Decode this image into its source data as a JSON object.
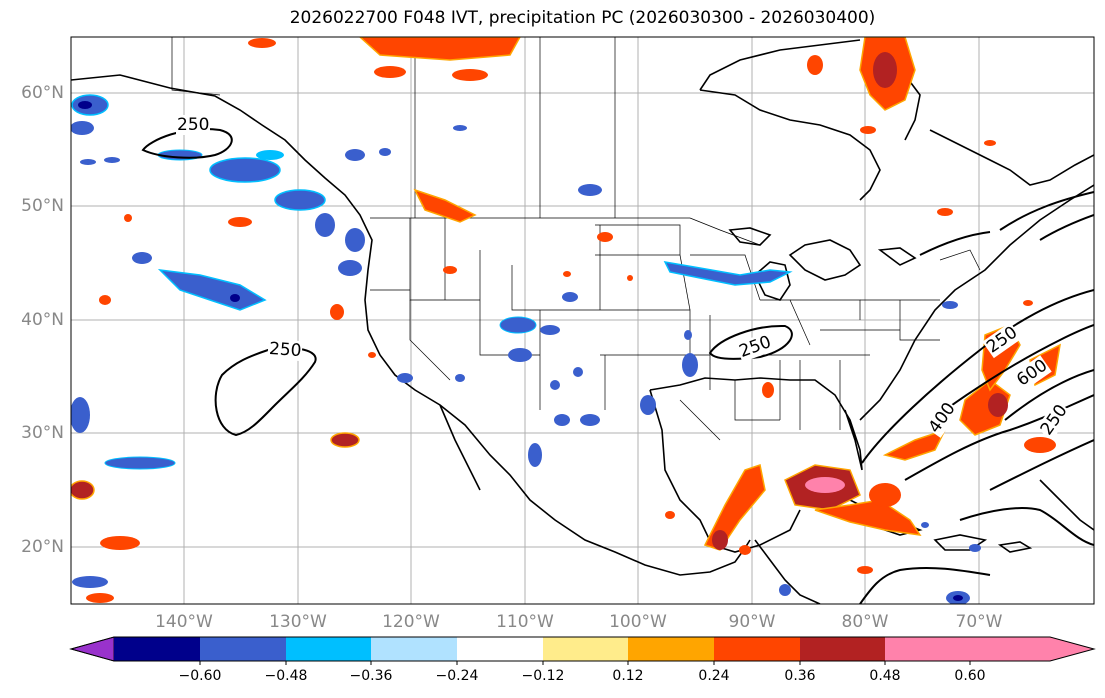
{
  "title": "2026022700 F048 IVT, precipitation PC (2026030300 - 2026030400)",
  "map": {
    "lat_ticks": [
      "60°N",
      "50°N",
      "40°N",
      "30°N",
      "20°N"
    ],
    "lon_ticks": [
      "140°W",
      "130°W",
      "120°W",
      "110°W",
      "100°W",
      "90°W",
      "80°W",
      "70°W"
    ],
    "contour_labels": [
      "250",
      "250",
      "250",
      "250",
      "400",
      "600",
      "250"
    ]
  },
  "colorbar": {
    "ticks": [
      "−0.60",
      "−0.48",
      "−0.36",
      "−0.24",
      "−0.12",
      "0.12",
      "0.24",
      "0.36",
      "0.48",
      "0.60"
    ],
    "colors": [
      "#9932cc",
      "#00008b",
      "#3a5fcd",
      "#00bfff",
      "#b0e2ff",
      "#ffffff",
      "#ffec8b",
      "#ffa500",
      "#ff4500",
      "#b22222",
      "#ff82ab"
    ]
  }
}
